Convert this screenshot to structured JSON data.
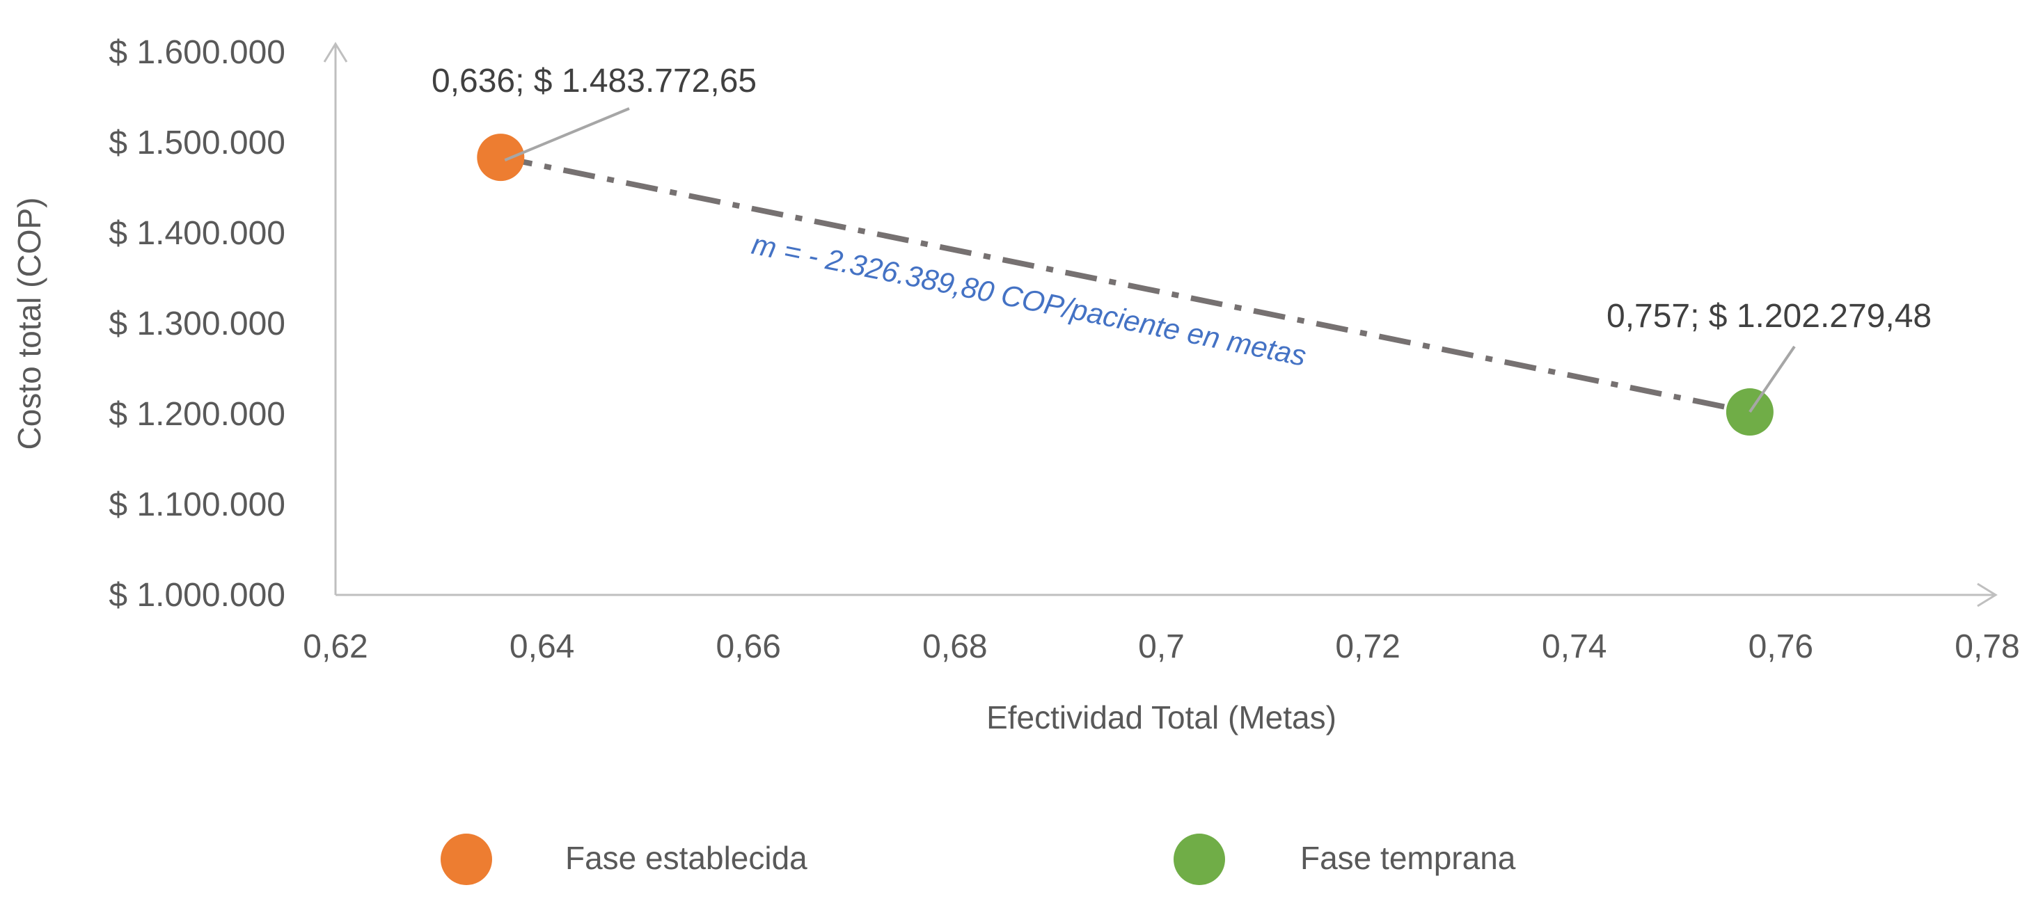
{
  "chart_data": {
    "type": "scatter",
    "title": "",
    "xlabel": "Efectividad Total (Metas)",
    "ylabel": "Costo total (COP)",
    "xlim": [
      0.62,
      0.78
    ],
    "ylim": [
      1000000,
      1600000
    ],
    "x_ticks": [
      {
        "value": 0.62,
        "label": "0,62"
      },
      {
        "value": 0.64,
        "label": "0,64"
      },
      {
        "value": 0.66,
        "label": "0,66"
      },
      {
        "value": 0.68,
        "label": "0,68"
      },
      {
        "value": 0.7,
        "label": "0,7"
      },
      {
        "value": 0.72,
        "label": "0,72"
      },
      {
        "value": 0.74,
        "label": "0,74"
      },
      {
        "value": 0.76,
        "label": "0,76"
      },
      {
        "value": 0.78,
        "label": "0,78"
      }
    ],
    "y_ticks": [
      {
        "value": 1000000,
        "label": "$ 1.000.000"
      },
      {
        "value": 1100000,
        "label": "$ 1.100.000"
      },
      {
        "value": 1200000,
        "label": "$ 1.200.000"
      },
      {
        "value": 1300000,
        "label": "$ 1.300.000"
      },
      {
        "value": 1400000,
        "label": "$ 1.400.000"
      },
      {
        "value": 1500000,
        "label": "$ 1.500.000"
      },
      {
        "value": 1600000,
        "label": "$ 1.600.000"
      }
    ],
    "series": [
      {
        "name": "Fase establecida",
        "color": "#ED7D31",
        "points": [
          {
            "x": 0.636,
            "y": 1483772.65,
            "label": "0,636;  $ 1.483.772,65"
          }
        ]
      },
      {
        "name": "Fase temprana",
        "color": "#70AD47",
        "points": [
          {
            "x": 0.757,
            "y": 1202279.48,
            "label": "0,757;  $ 1.202.279,48"
          }
        ]
      }
    ],
    "annotation": {
      "text": "m =  - 2.326.389,80 COP/paciente en metas",
      "color": "#4472C4"
    },
    "connector_line": {
      "style": "dash-dot",
      "color": "#767171"
    },
    "grid": false,
    "legend": "bottom"
  }
}
